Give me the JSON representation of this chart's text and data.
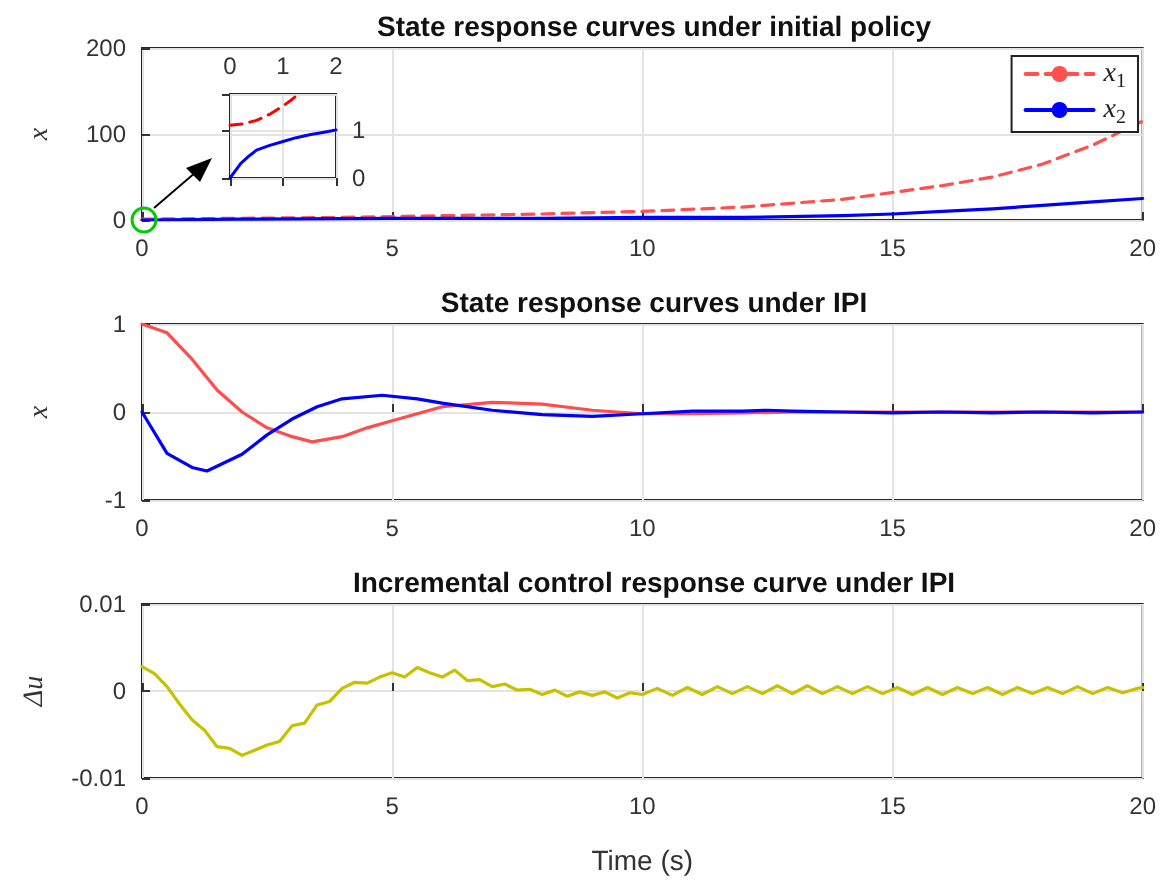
{
  "chart_data": [
    {
      "type": "line",
      "title": "State response curves under initial policy",
      "ylabel": "x",
      "xlim": [
        0,
        20
      ],
      "xticks": [
        0,
        5,
        10,
        15,
        20
      ],
      "ylim": [
        0,
        200
      ],
      "yticks": [
        0,
        100,
        200
      ],
      "grid": true,
      "legend": "top right",
      "marker": "none",
      "series": [
        {
          "name": "x$_{1}$",
          "color": "#ff5050",
          "line_style": "dashed",
          "x": [
            0,
            2,
            4,
            6,
            8,
            10,
            12,
            14,
            16,
            17,
            18,
            19,
            20
          ],
          "values": [
            1,
            2,
            3,
            5,
            7,
            10,
            15,
            24,
            40,
            50,
            65,
            87,
            115
          ]
        },
        {
          "name": "x$_{2}$",
          "color": "#0000ff",
          "line_style": "solid",
          "x": [
            0,
            2,
            5,
            8,
            10,
            12,
            14,
            15,
            16,
            17,
            18,
            19,
            20
          ],
          "values": [
            0,
            1,
            2,
            2,
            3,
            3,
            5,
            7,
            10,
            13,
            17,
            21,
            25
          ]
        }
      ]
    },
    {
      "type": "line",
      "xlim": [
        0,
        2
      ],
      "xticks": [
        0,
        1,
        2
      ],
      "ylim": [
        0,
        1.75
      ],
      "yticks": [
        0,
        1
      ],
      "grid": true,
      "marker": "none",
      "series": [
        {
          "color": "#ff0000",
          "line_style": "dashed",
          "x": [
            0,
            0.25,
            0.5,
            0.75,
            1,
            1.15,
            1.3
          ],
          "values": [
            1.1,
            1.13,
            1.2,
            1.33,
            1.5,
            1.62,
            1.75
          ]
        },
        {
          "color": "#0000ff",
          "line_style": "solid",
          "x": [
            0,
            0.1,
            0.2,
            0.35,
            0.5,
            0.75,
            1,
            1.25,
            1.5,
            1.75,
            2
          ],
          "values": [
            0,
            0.15,
            0.3,
            0.45,
            0.58,
            0.68,
            0.76,
            0.84,
            0.9,
            0.95,
            1.0
          ]
        }
      ]
    },
    {
      "type": "line",
      "title": "State response curves under IPI",
      "ylabel": "x",
      "xlim": [
        0,
        20
      ],
      "xticks": [
        0,
        5,
        10,
        15,
        20
      ],
      "ylim": [
        -1,
        1
      ],
      "yticks": [
        -1,
        0,
        1
      ],
      "grid": true,
      "marker": "none",
      "series": [
        {
          "color": "#ff4d4d",
          "line_style": "solid",
          "x": [
            0,
            0.5,
            1,
            1.5,
            2,
            2.5,
            3,
            3.4,
            4,
            4.5,
            5,
            6,
            7,
            8,
            9,
            10,
            11,
            12,
            13,
            15,
            20
          ],
          "values": [
            1,
            0.9,
            0.6,
            0.25,
            0,
            -0.18,
            -0.28,
            -0.34,
            -0.28,
            -0.18,
            -0.1,
            0.06,
            0.11,
            0.09,
            0.02,
            -0.02,
            -0.02,
            -0.01,
            0,
            0,
            0
          ]
        },
        {
          "color": "#0000ff",
          "line_style": "solid",
          "x": [
            0,
            0.5,
            1,
            1.3,
            2,
            2.5,
            3,
            3.5,
            4,
            4.8,
            5.5,
            6,
            7,
            8,
            9,
            10,
            11,
            12,
            12.5,
            13,
            14,
            15,
            16,
            17,
            18,
            19,
            20
          ],
          "values": [
            0,
            -0.47,
            -0.63,
            -0.67,
            -0.48,
            -0.26,
            -0.08,
            0.06,
            0.15,
            0.19,
            0.15,
            0.1,
            0.02,
            -0.03,
            -0.05,
            -0.02,
            0.01,
            0.01,
            0.02,
            0.01,
            0,
            -0.01,
            0,
            -0.01,
            0,
            -0.01,
            0
          ]
        }
      ]
    },
    {
      "type": "line",
      "title": "Incremental control response curve under IPI",
      "xlabel": "Time (s)",
      "ylabel": "Δu",
      "xlim": [
        0,
        20
      ],
      "xticks": [
        0,
        5,
        10,
        15,
        20
      ],
      "ylim": [
        -0.01,
        0.01
      ],
      "yticks": [
        -0.01,
        0,
        0.01
      ],
      "grid": true,
      "marker": "none",
      "series": [
        {
          "color": "#c8c000",
          "line_style": "solid",
          "x": [
            0,
            0.25,
            0.5,
            0.75,
            1,
            1.25,
            1.5,
            1.75,
            2,
            2.25,
            2.5,
            2.75,
            3,
            3.25,
            3.5,
            3.75,
            4,
            4.25,
            4.5,
            4.75,
            5,
            5.25,
            5.5,
            5.75,
            6,
            6.25,
            6.5,
            6.75,
            7,
            7.25,
            7.5,
            7.75,
            8,
            8.25,
            8.5,
            8.75,
            9,
            9.25,
            9.5,
            9.75,
            10,
            10.3,
            10.6,
            10.9,
            11.2,
            11.5,
            11.8,
            12.1,
            12.4,
            12.7,
            13,
            13.3,
            13.6,
            13.9,
            14.2,
            14.5,
            14.8,
            15.1,
            15.4,
            15.7,
            16,
            16.3,
            16.6,
            16.9,
            17.2,
            17.5,
            17.8,
            18.1,
            18.4,
            18.7,
            19,
            19.3,
            19.6,
            19.9,
            20
          ],
          "values": [
            0.0028,
            0.002,
            0.0005,
            -0.0015,
            -0.0033,
            -0.0045,
            -0.0064,
            -0.0066,
            -0.0074,
            -0.0068,
            -0.0062,
            -0.0058,
            -0.004,
            -0.0037,
            -0.0016,
            -0.0012,
            0.0003,
            0.001,
            0.0009,
            0.0016,
            0.0021,
            0.0016,
            0.0027,
            0.0021,
            0.0016,
            0.0024,
            0.0012,
            0.0013,
            0.0005,
            0.0008,
            0.0001,
            0.0002,
            -0.0004,
            0.0001,
            -0.0006,
            -0.0001,
            -0.0005,
            -0.0001,
            -0.0008,
            -0.0002,
            -0.0004,
            0.0003,
            -0.0005,
            0.0004,
            -0.0004,
            0.0005,
            -0.0003,
            0.0005,
            -0.0003,
            0.0006,
            -0.0003,
            0.0006,
            -0.0003,
            0.0005,
            -0.0003,
            0.0005,
            -0.0003,
            0.0004,
            -0.0004,
            0.0004,
            -0.0004,
            0.0004,
            -0.0003,
            0.0004,
            -0.0004,
            0.0004,
            -0.0003,
            0.0004,
            -0.0003,
            0.0005,
            -0.0003,
            0.0004,
            -0.0002,
            0.0003,
            0.0004
          ]
        }
      ]
    }
  ]
}
